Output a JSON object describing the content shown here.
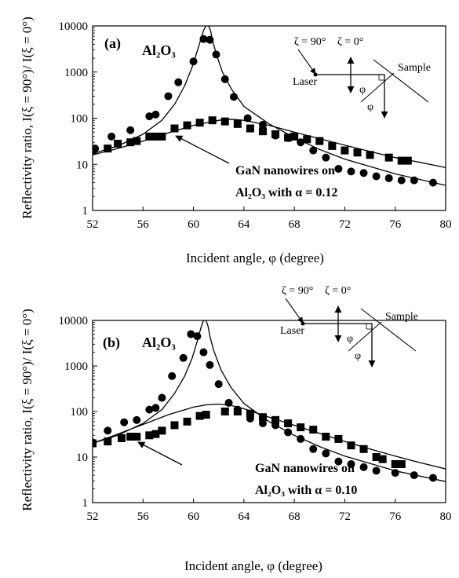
{
  "chart_data": [
    {
      "type": "scatter",
      "panel_label": "(a)",
      "substrate_label": "Al₂O₃",
      "nanowire_label_line1": "GaN nanowires on",
      "nanowire_label_line2": "Al₂O₃ with α = 0.12",
      "xlabel": "Incident angle, φ (degree)",
      "ylabel": "Reflectivity ratio, I(ξ = 90°)/ I(ξ = 0°)",
      "x_ticks": [
        "52",
        "56",
        "60",
        "64",
        "68",
        "72",
        "76",
        "80"
      ],
      "y_ticks": [
        "1",
        "10",
        "100",
        "1000",
        "10000"
      ],
      "xlim": [
        52,
        80
      ],
      "ylim": [
        1,
        10000
      ],
      "y_scale": "log",
      "inset": {
        "xi90": "ζ = 90°",
        "xi0": "ζ = 0°",
        "laser": "Laser",
        "sample": "Sample",
        "phi": "φ"
      },
      "series": [
        {
          "marker": "circle",
          "x": [
            52.2,
            53.5,
            55.0,
            56.5,
            57.0,
            58.0,
            58.8,
            60.0,
            60.8,
            61.3,
            61.8,
            62.5,
            63.2,
            64.3,
            65.5,
            66.5,
            67.5,
            68.5,
            69.5,
            70.5,
            71.5,
            72.5,
            73.5,
            74.5,
            75.5,
            76.5,
            77.5,
            79.0
          ],
          "y": [
            22,
            40,
            55,
            110,
            120,
            300,
            600,
            1700,
            5200,
            5000,
            2400,
            700,
            290,
            100,
            72,
            42,
            37,
            30,
            20,
            14,
            8,
            7,
            6.5,
            5.5,
            5,
            4.5,
            4.5,
            4
          ]
        },
        {
          "marker": "square",
          "x": [
            52.0,
            53.2,
            54.0,
            55.0,
            55.5,
            56.5,
            57.0,
            57.5,
            58.5,
            59.5,
            60.5,
            61.5,
            62.5,
            63.5,
            64.5,
            65.5,
            66.5,
            67.5,
            68.0,
            69.0,
            70.0,
            71.0,
            72.0,
            73.0,
            74.0,
            75.5,
            76.5,
            77.0
          ],
          "y": [
            20,
            22,
            28,
            30,
            32,
            40,
            40,
            40,
            60,
            70,
            80,
            90,
            85,
            75,
            60,
            52,
            45,
            38,
            40,
            35,
            32,
            25,
            20,
            18,
            16,
            14,
            12,
            12
          ]
        }
      ],
      "fit_curves": [
        {
          "x": [
            52,
            54,
            56,
            57.5,
            58.5,
            59.3,
            59.9,
            60.4,
            60.8,
            61.0,
            61.2,
            61.35,
            61.5,
            61.8,
            62.3,
            63,
            64,
            66,
            68,
            70,
            72,
            76,
            80
          ],
          "y": [
            17,
            25,
            45,
            90,
            200,
            500,
            1300,
            3500,
            8000,
            10000,
            10000,
            8000,
            5000,
            2500,
            1000,
            430,
            180,
            75,
            38,
            21,
            13,
            6.2,
            3.5
          ]
        },
        {
          "x": [
            52,
            54,
            56,
            58,
            60,
            62,
            63,
            64,
            66,
            68,
            70,
            72,
            74,
            76,
            78,
            80
          ],
          "y": [
            16,
            22,
            32,
            48,
            70,
            90,
            95,
            90,
            70,
            50,
            36,
            26,
            19,
            14,
            11,
            8.5
          ]
        }
      ]
    },
    {
      "type": "scatter",
      "panel_label": "(b)",
      "substrate_label": "Al₂O₃",
      "nanowire_label_line1": "GaN nanowires on",
      "nanowire_label_line2": "Al₂O₃ with α = 0.10",
      "xlabel": "Incident angle, φ (degree)",
      "ylabel": "Reflectivity ratio, I(ξ = 90°)/ I(ξ = 0°)",
      "x_ticks": [
        "52",
        "56",
        "60",
        "64",
        "68",
        "72",
        "76",
        "80"
      ],
      "y_ticks": [
        "1",
        "10",
        "100",
        "1000",
        "10000"
      ],
      "xlim": [
        52,
        80
      ],
      "ylim": [
        1,
        10000
      ],
      "y_scale": "log",
      "inset": {
        "xi90": "ζ = 90°",
        "xi0": "ζ = 0°",
        "laser": "Laser",
        "sample": "Sample",
        "phi": "φ"
      },
      "series": [
        {
          "marker": "circle",
          "x": [
            52.0,
            53.2,
            54.5,
            55.5,
            56.5,
            57.0,
            57.5,
            58.3,
            59.2,
            59.8,
            60.3,
            60.8,
            61.3,
            62.0,
            62.8,
            63.5,
            64.5,
            65.5,
            66.5,
            67.5,
            68.5,
            69.5,
            70.5,
            71.5,
            72.5,
            73.5,
            74.5,
            76.0,
            77.5,
            79.0
          ],
          "y": [
            21,
            38,
            58,
            65,
            110,
            120,
            200,
            600,
            1500,
            5000,
            4500,
            2000,
            1050,
            400,
            155,
            110,
            70,
            55,
            50,
            35,
            25,
            15,
            12,
            8,
            7,
            6,
            5,
            4.5,
            4,
            3.5
          ]
        },
        {
          "marker": "square",
          "x": [
            52.0,
            53.2,
            54.3,
            55.0,
            55.5,
            56.5,
            57.0,
            57.5,
            58.5,
            59.5,
            60.5,
            61.0,
            62.5,
            63.5,
            64.5,
            65.5,
            66.5,
            67.5,
            68.5,
            69.5,
            70.5,
            71.5,
            72.5,
            73.5,
            74.5,
            75.0,
            76.0,
            76.5
          ],
          "y": [
            20,
            22,
            26,
            28,
            28,
            30,
            32,
            38,
            50,
            60,
            80,
            85,
            100,
            100,
            90,
            75,
            65,
            55,
            45,
            40,
            28,
            25,
            18,
            15,
            10,
            9,
            7,
            7
          ]
        }
      ],
      "fit_curves": [
        {
          "x": [
            52,
            54,
            56,
            57.5,
            58.5,
            59.3,
            59.9,
            60.3,
            60.6,
            60.8,
            61.0,
            61.15,
            61.3,
            61.6,
            62.2,
            63,
            64,
            66,
            68,
            70,
            72,
            76,
            80
          ],
          "y": [
            20,
            30,
            55,
            110,
            250,
            600,
            1500,
            3500,
            7000,
            10000,
            10000,
            7500,
            4500,
            2200,
            800,
            330,
            150,
            60,
            30,
            17,
            10.5,
            5,
            2.9
          ]
        },
        {
          "x": [
            52,
            54,
            56,
            58,
            60,
            61,
            62,
            63,
            64,
            66,
            68,
            70,
            72,
            74,
            76,
            78,
            80
          ],
          "y": [
            20,
            32,
            52,
            85,
            125,
            140,
            145,
            135,
            115,
            75,
            50,
            33,
            22,
            15,
            10.5,
            7.5,
            5.5
          ]
        }
      ]
    }
  ]
}
